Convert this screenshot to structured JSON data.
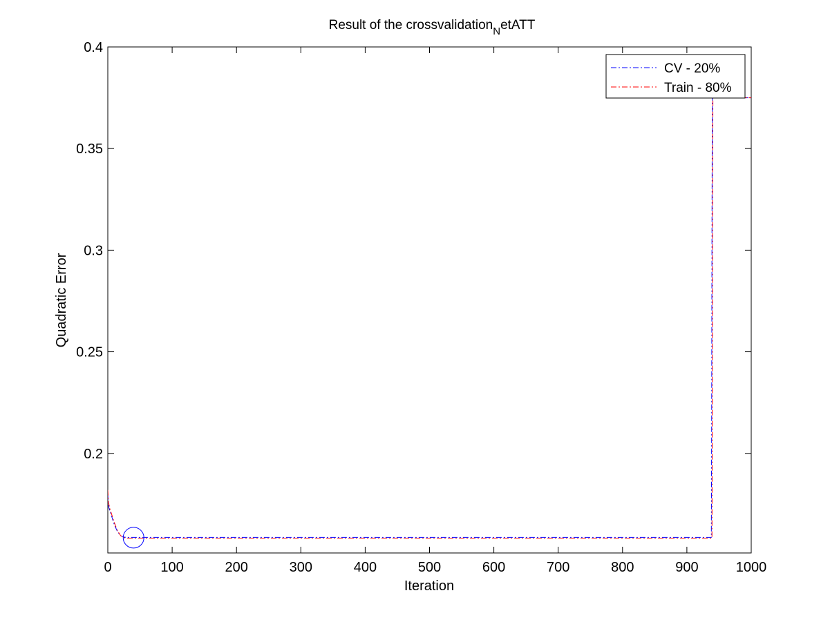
{
  "chart_data": {
    "type": "line",
    "title": "Result of the crossvalidation",
    "title_subscript": "N",
    "title_suffix": "etATT",
    "xlabel": "Iteration",
    "ylabel": "Quadratic Error",
    "xlim": [
      0,
      1000
    ],
    "ylim": [
      0.151,
      0.4
    ],
    "xticks": [
      "0",
      "100",
      "200",
      "300",
      "400",
      "500",
      "600",
      "700",
      "800",
      "900",
      "1000"
    ],
    "xtick_values": [
      0,
      100,
      200,
      300,
      400,
      500,
      600,
      700,
      800,
      900,
      1000
    ],
    "yticks": [
      "0.2",
      "0.25",
      "0.3",
      "0.35",
      "0.4"
    ],
    "ytick_values": [
      0.2,
      0.25,
      0.3,
      0.35,
      0.4
    ],
    "grid": false,
    "legend_position": "top-right",
    "marker": {
      "x": 40,
      "y": 0.1585,
      "shape": "circle",
      "color": "#0000ff"
    },
    "series": [
      {
        "name": "CV - 20%",
        "color": "#0000ff",
        "line_style": "dash-dot",
        "x": [
          0,
          1,
          3,
          6,
          10,
          15,
          20,
          25,
          30,
          40,
          60,
          100,
          200,
          400,
          600,
          800,
          900,
          938,
          938.5,
          939,
          939.5,
          940,
          1000
        ],
        "y": [
          0.18,
          0.174,
          0.172,
          0.169,
          0.165,
          0.1615,
          0.1595,
          0.1588,
          0.1587,
          0.1587,
          0.1587,
          0.1587,
          0.1587,
          0.1587,
          0.1587,
          0.1587,
          0.1587,
          0.1587,
          0.21,
          0.31,
          0.375,
          0.375,
          0.375
        ]
      },
      {
        "name": "Train - 80%",
        "color": "#ff0000",
        "line_style": "dash-dot",
        "x": [
          0,
          1,
          3,
          6,
          10,
          15,
          20,
          25,
          30,
          40,
          60,
          100,
          200,
          400,
          600,
          800,
          900,
          939,
          939.5,
          940,
          940.5,
          941,
          1000
        ],
        "y": [
          0.182,
          0.176,
          0.173,
          0.17,
          0.166,
          0.162,
          0.1595,
          0.1585,
          0.1583,
          0.1583,
          0.1583,
          0.1583,
          0.1583,
          0.1583,
          0.1583,
          0.1583,
          0.1583,
          0.1583,
          0.22,
          0.32,
          0.375,
          0.375,
          0.375
        ]
      }
    ]
  }
}
